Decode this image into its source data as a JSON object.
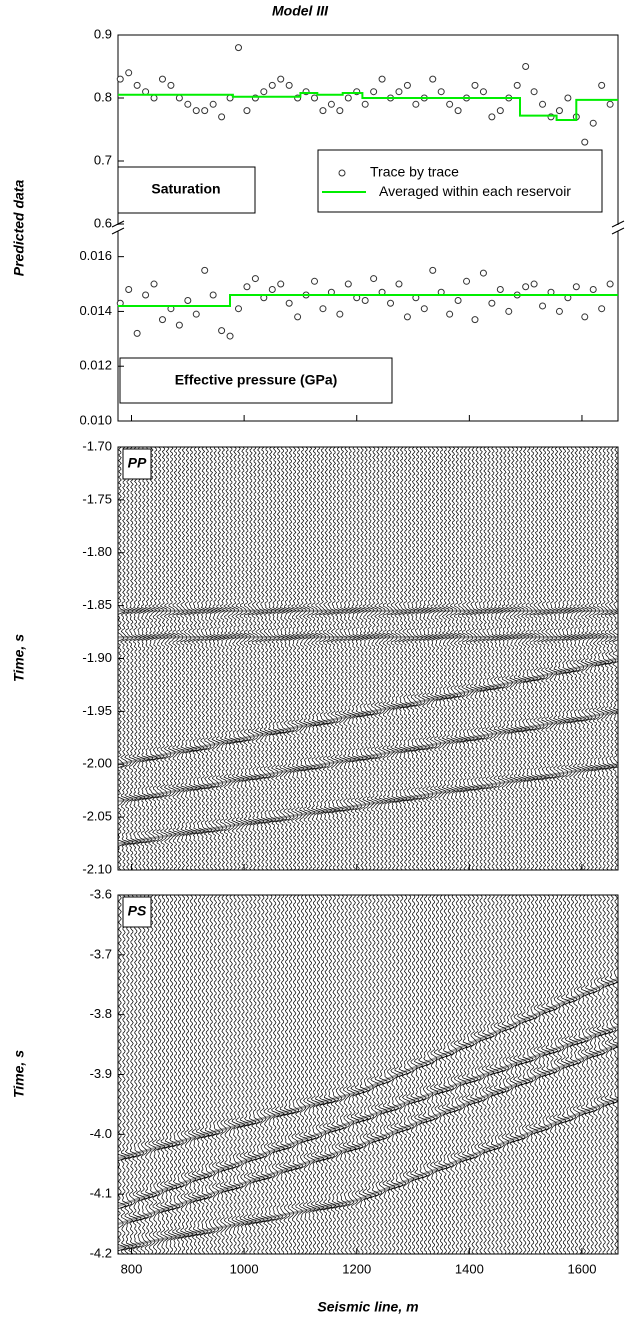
{
  "chart_data": [
    {
      "type": "scatter",
      "title": "Model III",
      "y_label": "Predicted data",
      "xlim": [
        776,
        1664
      ],
      "xticks": [
        800,
        1000,
        1200,
        1400,
        1600
      ],
      "panels": [
        {
          "annotation": "Saturation",
          "ylim": [
            0.6,
            0.9
          ],
          "yticks": [
            0.6,
            0.7,
            0.8,
            0.9
          ],
          "series": [
            {
              "name": "Trace by trace",
              "color": "#333333",
              "x": [
                780,
                795,
                810,
                825,
                840,
                855,
                870,
                885,
                900,
                915,
                930,
                945,
                960,
                975,
                990,
                1005,
                1020,
                1035,
                1050,
                1065,
                1080,
                1095,
                1110,
                1125,
                1140,
                1155,
                1170,
                1185,
                1200,
                1215,
                1230,
                1245,
                1260,
                1275,
                1290,
                1305,
                1320,
                1335,
                1350,
                1365,
                1380,
                1395,
                1410,
                1425,
                1440,
                1455,
                1470,
                1485,
                1500,
                1515,
                1530,
                1545,
                1560,
                1575,
                1590,
                1605,
                1620,
                1635,
                1650
              ],
              "values": [
                0.83,
                0.84,
                0.82,
                0.81,
                0.8,
                0.83,
                0.82,
                0.8,
                0.79,
                0.78,
                0.78,
                0.79,
                0.77,
                0.8,
                0.88,
                0.78,
                0.8,
                0.81,
                0.82,
                0.83,
                0.82,
                0.8,
                0.81,
                0.8,
                0.78,
                0.79,
                0.78,
                0.8,
                0.81,
                0.79,
                0.81,
                0.83,
                0.8,
                0.81,
                0.82,
                0.79,
                0.8,
                0.83,
                0.81,
                0.79,
                0.78,
                0.8,
                0.82,
                0.81,
                0.77,
                0.78,
                0.8,
                0.82,
                0.85,
                0.81,
                0.79,
                0.77,
                0.78,
                0.8,
                0.77,
                0.73,
                0.76,
                0.82,
                0.79
              ]
            },
            {
              "name": "Averaged within each reservoir",
              "color": "#00ee00",
              "x": [
                776,
                980,
                980,
                1100,
                1100,
                1130,
                1130,
                1175,
                1175,
                1210,
                1210,
                1490,
                1490,
                1555,
                1555,
                1590,
                1590,
                1664
              ],
              "values": [
                0.805,
                0.805,
                0.802,
                0.802,
                0.808,
                0.808,
                0.805,
                0.805,
                0.808,
                0.808,
                0.8,
                0.8,
                0.772,
                0.772,
                0.765,
                0.765,
                0.797,
                0.797
              ]
            }
          ]
        },
        {
          "annotation": "Effective pressure (GPa)",
          "ylim": [
            0.01,
            0.0169
          ],
          "yticks": [
            {
              "value": 0.01,
              "label": "0.010"
            },
            {
              "value": 0.012,
              "label": "0.012"
            },
            {
              "value": 0.014,
              "label": "0.014"
            },
            {
              "value": 0.016,
              "label": "0.016"
            }
          ],
          "series": [
            {
              "color": "#333333",
              "x": [
                780,
                795,
                810,
                825,
                840,
                855,
                870,
                885,
                900,
                915,
                930,
                945,
                960,
                975,
                990,
                1005,
                1020,
                1035,
                1050,
                1065,
                1080,
                1095,
                1110,
                1125,
                1140,
                1155,
                1170,
                1185,
                1200,
                1215,
                1230,
                1245,
                1260,
                1275,
                1290,
                1305,
                1320,
                1335,
                1350,
                1365,
                1380,
                1395,
                1410,
                1425,
                1440,
                1455,
                1470,
                1485,
                1500,
                1515,
                1530,
                1545,
                1560,
                1575,
                1590,
                1605,
                1620,
                1635,
                1650
              ],
              "values": [
                0.0143,
                0.0148,
                0.0132,
                0.0146,
                0.015,
                0.0137,
                0.0141,
                0.0135,
                0.0144,
                0.0139,
                0.0155,
                0.0146,
                0.0133,
                0.0131,
                0.0141,
                0.0149,
                0.0152,
                0.0145,
                0.0148,
                0.015,
                0.0143,
                0.0138,
                0.0146,
                0.0151,
                0.0141,
                0.0147,
                0.0139,
                0.015,
                0.0145,
                0.0144,
                0.0152,
                0.0147,
                0.0143,
                0.015,
                0.0138,
                0.0145,
                0.0141,
                0.0155,
                0.0147,
                0.0139,
                0.0144,
                0.0151,
                0.0137,
                0.0154,
                0.0143,
                0.0148,
                0.014,
                0.0146,
                0.0149,
                0.015,
                0.0142,
                0.0147,
                0.014,
                0.0145,
                0.0149,
                0.0138,
                0.0148,
                0.0141,
                0.015
              ]
            },
            {
              "color": "#00ee00",
              "x": [
                776,
                975,
                975,
                1205,
                1205,
                1664
              ],
              "values": [
                0.0142,
                0.0142,
                0.0146,
                0.0146,
                0.0146,
                0.0146
              ]
            }
          ]
        }
      ]
    },
    {
      "type": "seismic",
      "annotation": "PP",
      "y_label": "Time, s",
      "xlim": [
        776,
        1664
      ],
      "xticks": [
        800,
        1000,
        1200,
        1400,
        1600
      ],
      "ylim": [
        -2.1,
        -1.7
      ],
      "yticks": [
        {
          "value": -2.1,
          "label": "-2.10"
        },
        -2.05,
        {
          "value": -2.0,
          "label": "-2.00"
        },
        -1.95,
        {
          "value": -1.9,
          "label": "-1.90"
        },
        -1.85,
        {
          "value": -1.8,
          "label": "-1.80"
        },
        -1.75,
        {
          "value": -1.7,
          "label": "-1.70"
        }
      ],
      "events": [
        {
          "x": [
            776,
            1500,
            1664
          ],
          "values": [
            -2.0,
            -1.92,
            -1.9
          ]
        },
        {
          "x": [
            776,
            1664
          ],
          "values": [
            -2.035,
            -1.95
          ]
        },
        {
          "x": [
            776,
            1664
          ],
          "values": [
            -2.075,
            -2.0
          ]
        },
        {
          "x": [
            776,
            1664
          ],
          "values": [
            -1.88,
            -1.88
          ]
        },
        {
          "x": [
            776,
            1664
          ],
          "values": [
            -1.855,
            -1.855
          ]
        }
      ]
    },
    {
      "type": "seismic",
      "annotation": "PS",
      "y_label": "Time, s",
      "x_label": "Seismic line, m",
      "xlim": [
        776,
        1664
      ],
      "xticks": [
        800,
        1000,
        1200,
        1400,
        1600
      ],
      "ylim": [
        -4.2,
        -3.6
      ],
      "yticks": [
        -4.2,
        -4.1,
        {
          "value": -4.0,
          "label": "-4.0"
        },
        -3.9,
        -3.8,
        -3.7,
        -3.6
      ],
      "events": [
        {
          "x": [
            776,
            1200,
            1664
          ],
          "values": [
            -4.04,
            -3.93,
            -3.74
          ]
        },
        {
          "x": [
            776,
            1200,
            1664
          ],
          "values": [
            -4.15,
            -4.02,
            -3.85
          ]
        },
        {
          "x": [
            776,
            1200,
            1664
          ],
          "values": [
            -4.19,
            -4.11,
            -3.94
          ]
        },
        {
          "x": [
            776,
            1664
          ],
          "values": [
            -4.12,
            -3.82
          ]
        }
      ]
    }
  ]
}
